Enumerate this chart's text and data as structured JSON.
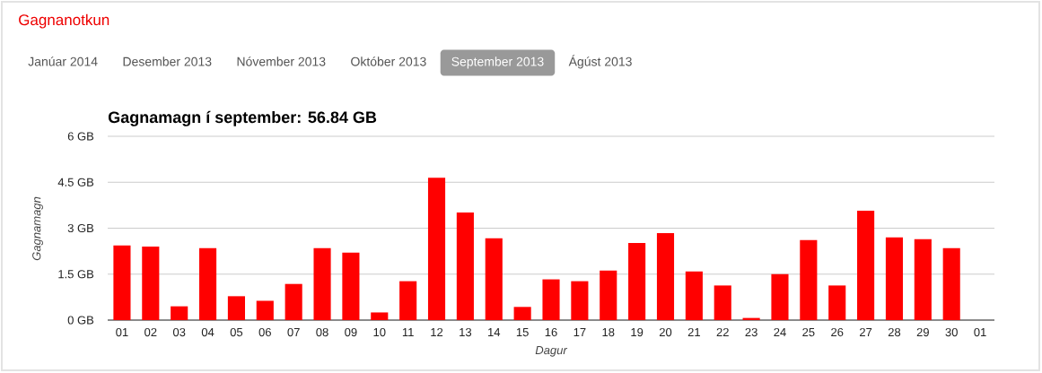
{
  "chart_data": {
    "type": "bar",
    "title": "Gagnanotkun",
    "subtitle": "Gagnamagn í september: 56.84 GB",
    "xlabel": "Dagur",
    "ylabel": "Gagnamagn",
    "annotations": [
      "Janúar 2014",
      "Desember 2013",
      "Nóvember 2013",
      "Október 2013",
      "September 2013",
      "Ágúst 2013"
    ],
    "categories": [
      "01",
      "02",
      "03",
      "04",
      "05",
      "06",
      "07",
      "08",
      "09",
      "10",
      "11",
      "12",
      "13",
      "14",
      "15",
      "16",
      "17",
      "18",
      "19",
      "20",
      "21",
      "22",
      "23",
      "24",
      "25",
      "26",
      "27",
      "28",
      "29",
      "30",
      "01"
    ],
    "values": [
      2.44,
      2.4,
      0.45,
      2.35,
      0.78,
      0.63,
      1.18,
      2.35,
      2.2,
      0.25,
      1.27,
      4.65,
      3.51,
      2.67,
      0.43,
      1.33,
      1.27,
      1.62,
      2.52,
      2.84,
      1.59,
      1.13,
      0.07,
      1.5,
      2.61,
      1.13,
      3.57,
      2.7,
      2.64,
      2.35,
      null
    ],
    "color": "#ff0000",
    "ylim": [
      0,
      6
    ],
    "yticks": [
      {
        "value": 0,
        "label": "0 GB"
      },
      {
        "value": 1.5,
        "label": "1.5 GB"
      },
      {
        "value": 3,
        "label": "3 GB"
      },
      {
        "value": 4.5,
        "label": "4.5 GB"
      },
      {
        "value": 6,
        "label": "6 GB"
      }
    ],
    "grid": "y"
  }
}
